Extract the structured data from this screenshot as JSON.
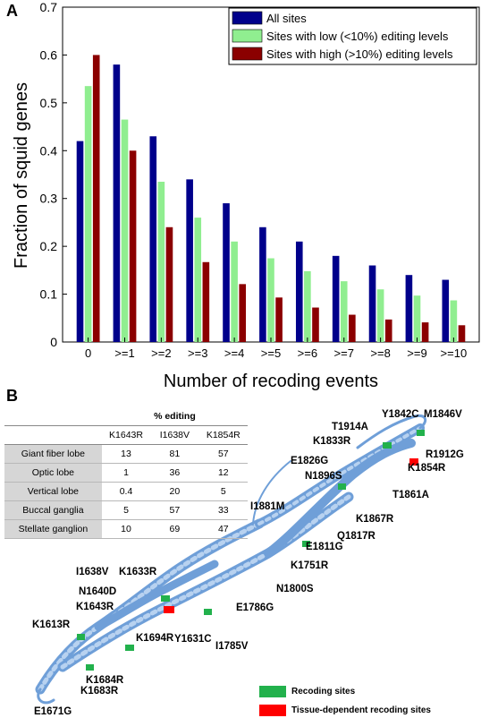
{
  "panel_a_letter": "A",
  "panel_b_letter": "B",
  "chart_data": {
    "type": "bar",
    "ylabel": "Fraction of squid genes",
    "xlabel": "Number of recoding events",
    "ylim": [
      0,
      0.7
    ],
    "yticks": [
      "0",
      "0.1",
      "0.2",
      "0.3",
      "0.4",
      "0.5",
      "0.6",
      "0.7"
    ],
    "legend_position": "top-right",
    "categories": [
      "0",
      ">=1",
      ">=2",
      ">=3",
      ">=4",
      ">=5",
      ">=6",
      ">=7",
      ">=8",
      ">=9",
      ">=10"
    ],
    "series": [
      {
        "name": "All sites",
        "color": "#00008b",
        "values": [
          0.42,
          0.58,
          0.43,
          0.34,
          0.29,
          0.24,
          0.21,
          0.18,
          0.16,
          0.14,
          0.13
        ]
      },
      {
        "name": "Sites with low (<10%) editing levels",
        "color": "#90ee90",
        "values": [
          0.535,
          0.465,
          0.335,
          0.26,
          0.21,
          0.175,
          0.148,
          0.127,
          0.11,
          0.097,
          0.087
        ]
      },
      {
        "name": "Sites with high (>10%) editing levels",
        "color": "#8b0000",
        "values": [
          0.6,
          0.4,
          0.24,
          0.167,
          0.121,
          0.093,
          0.072,
          0.057,
          0.047,
          0.041,
          0.035
        ]
      }
    ]
  },
  "table": {
    "title": "% editing",
    "columns": [
      "K1643R",
      "I1638V",
      "K1854R"
    ],
    "rows": [
      {
        "label": "Giant fiber lobe",
        "values": [
          "13",
          "81",
          "57"
        ]
      },
      {
        "label": "Optic lobe",
        "values": [
          "1",
          "36",
          "12"
        ]
      },
      {
        "label": "Vertical lobe",
        "values": [
          "0.4",
          "20",
          "5"
        ]
      },
      {
        "label": "Buccal ganglia",
        "values": [
          "5",
          "57",
          "33"
        ]
      },
      {
        "label": "Stellate ganglion",
        "values": [
          "10",
          "69",
          "47"
        ]
      }
    ]
  },
  "structure": {
    "labels": [
      "Y1842C",
      "M1846V",
      "T1914A",
      "K1833R",
      "R1912G",
      "E1826G",
      "K1854R",
      "N1896S",
      "T1861A",
      "I1881M",
      "K1867R",
      "Q1817R",
      "E1811G",
      "K1751R",
      "N1800S",
      "I1638V",
      "K1633R",
      "N1640D",
      "K1643R",
      "E1786G",
      "Y1631C",
      "I1785V",
      "K1613R",
      "K1694R",
      "K1684R",
      "K1683R",
      "E1671G"
    ],
    "legend": [
      {
        "label": "Recoding sites",
        "color": "#22b14c"
      },
      {
        "label": "Tissue-dependent  recoding sites",
        "color": "#ff0000"
      }
    ]
  }
}
